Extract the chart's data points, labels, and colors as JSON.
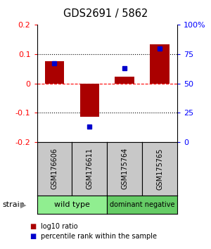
{
  "title": "GDS2691 / 5862",
  "samples": [
    "GSM176606",
    "GSM176611",
    "GSM175764",
    "GSM175765"
  ],
  "log10_ratio": [
    0.075,
    -0.113,
    0.022,
    0.133
  ],
  "percentile_raw": [
    67,
    13,
    63,
    80
  ],
  "ylim": [
    -0.2,
    0.2
  ],
  "yticks_left": [
    -0.2,
    -0.1,
    0,
    0.1,
    0.2
  ],
  "yticks_right_labels": [
    "0",
    "25",
    "50",
    "75",
    "100%"
  ],
  "bar_color": "#AA0000",
  "dot_color": "#0000CC",
  "bar_width": 0.55,
  "sample_box_color": "#C8C8C8",
  "group_box_color_wild": "#90EE90",
  "group_box_color_dominant": "#66CC66",
  "wt_label": "wild type",
  "dn_label": "dominant negative",
  "strain_label": "strain",
  "legend1": "log10 ratio",
  "legend2": "percentile rank within the sample"
}
